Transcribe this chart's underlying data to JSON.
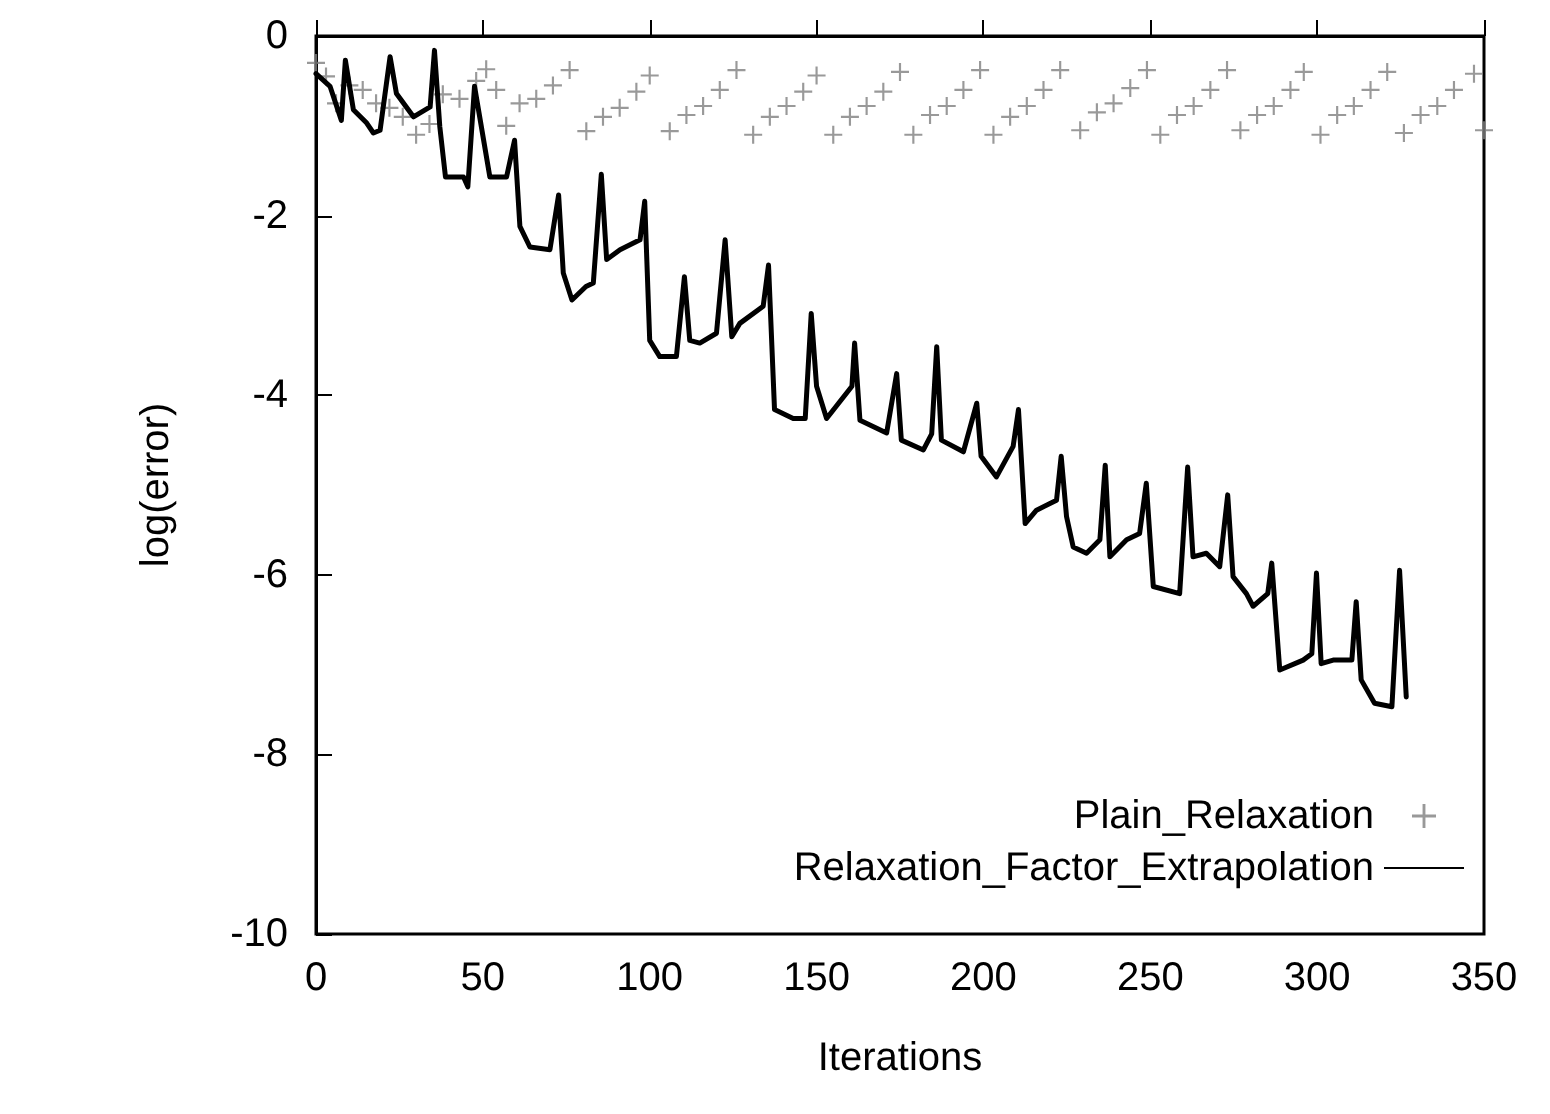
{
  "chart_data": {
    "type": "line",
    "xlabel": "Iterations",
    "ylabel": "log(error)",
    "xlim": [
      0,
      350
    ],
    "xticks": [
      0,
      50,
      100,
      150,
      200,
      250,
      300,
      350
    ],
    "ylim": [
      -10,
      0
    ],
    "yticks": [
      -10,
      -8,
      -6,
      -4,
      -2,
      0
    ],
    "grid": false,
    "legend": "bottom right",
    "series": [
      {
        "name": "Plain_Relaxation",
        "type": "scatter",
        "marker": "cross",
        "color": "#808080",
        "x": [
          0,
          3,
          6,
          10,
          14,
          18,
          22,
          26,
          30,
          34,
          38,
          43,
          48,
          51,
          54,
          57,
          61,
          66,
          71,
          76,
          81,
          86,
          91,
          96,
          100,
          106,
          111,
          116,
          121,
          126,
          131,
          136,
          141,
          146,
          150,
          155,
          160,
          165,
          170,
          175,
          179,
          184,
          189,
          194,
          199,
          203,
          208,
          213,
          218,
          223,
          229,
          234,
          239,
          244,
          249,
          253,
          258,
          263,
          268,
          273,
          277,
          282,
          287,
          292,
          296,
          301,
          306,
          311,
          316,
          321,
          326,
          331,
          336,
          341,
          347,
          350
        ],
        "values": [
          -0.3,
          -0.45,
          -0.75,
          -0.55,
          -0.6,
          -0.75,
          -0.8,
          -0.9,
          -1.1,
          -0.98,
          -0.65,
          -0.7,
          -0.5,
          -0.37,
          -0.6,
          -1.0,
          -0.75,
          -0.7,
          -0.55,
          -0.38,
          -1.06,
          -0.9,
          -0.8,
          -0.62,
          -0.44,
          -1.06,
          -0.88,
          -0.78,
          -0.6,
          -0.38,
          -1.1,
          -0.9,
          -0.78,
          -0.62,
          -0.44,
          -1.1,
          -0.9,
          -0.78,
          -0.62,
          -0.4,
          -1.1,
          -0.88,
          -0.78,
          -0.6,
          -0.38,
          -1.1,
          -0.9,
          -0.78,
          -0.6,
          -0.38,
          -1.05,
          -0.85,
          -0.75,
          -0.58,
          -0.38,
          -1.1,
          -0.88,
          -0.78,
          -0.6,
          -0.38,
          -1.05,
          -0.88,
          -0.78,
          -0.6,
          -0.4,
          -1.1,
          -0.88,
          -0.78,
          -0.6,
          -0.4,
          -1.08,
          -0.88,
          -0.78,
          -0.6,
          -0.42,
          -1.05
        ]
      },
      {
        "name": "Relaxation_Factor_Extrapolation",
        "marker": "none",
        "line_style": "solid",
        "color": "#000000",
        "x": [
          0,
          4.2,
          7.6,
          8.8,
          11.2,
          15.2,
          17.2,
          19.2,
          22.2,
          24.1,
          29.2,
          34.2,
          35.5,
          37.1,
          38.8,
          44.2,
          45.5,
          47.5,
          52.1,
          57.1,
          59.5,
          61.1,
          64.1,
          70.1,
          72.7,
          74.1,
          76.7,
          80.9,
          83.1,
          85.5,
          87.1,
          91.1,
          97.1,
          98.5,
          100,
          103,
          108,
          110.4,
          112,
          115,
          120,
          122.6,
          124.6,
          127,
          134,
          135.6,
          137.4,
          143,
          146.6,
          148.4,
          150,
          153,
          160.6,
          161.4,
          163,
          171,
          174,
          175.4,
          182,
          184.5,
          186,
          187.4,
          194,
          198,
          199.3,
          203.9,
          208.9,
          210.5,
          212.5,
          215.9,
          221.9,
          223.3,
          224.9,
          226.9,
          230.9,
          234.9,
          236.5,
          237.9,
          242.9,
          246.8,
          248.8,
          250.9,
          258.8,
          261.2,
          262.8,
          266.8,
          270.8,
          273.2,
          274.8,
          278.8,
          280.8,
          285.2,
          286.4,
          288.8,
          295.8,
          298.4,
          299.8,
          301.2,
          304.8,
          310.4,
          311.7,
          313.2,
          317.2,
          322.4,
          324.7,
          326.7
        ],
        "values": [
          -0.42,
          -0.56,
          -0.94,
          -0.27,
          -0.82,
          -0.97,
          -1.08,
          -1.05,
          -0.23,
          -0.64,
          -0.9,
          -0.79,
          -0.16,
          -1.01,
          -1.57,
          -1.57,
          -1.68,
          -0.56,
          -1.57,
          -1.57,
          -1.16,
          -2.12,
          -2.35,
          -2.38,
          -1.77,
          -2.64,
          -2.94,
          -2.79,
          -2.75,
          -1.54,
          -2.49,
          -2.38,
          -2.27,
          -1.84,
          -3.39,
          -3.57,
          -3.57,
          -2.68,
          -3.39,
          -3.42,
          -3.31,
          -2.27,
          -3.35,
          -3.2,
          -3.01,
          -2.55,
          -4.16,
          -4.26,
          -4.26,
          -3.09,
          -3.9,
          -4.26,
          -3.9,
          -3.42,
          -4.28,
          -4.42,
          -3.76,
          -4.5,
          -4.61,
          -4.43,
          -3.46,
          -4.5,
          -4.63,
          -4.09,
          -4.68,
          -4.91,
          -4.57,
          -4.16,
          -5.43,
          -5.28,
          -5.17,
          -4.68,
          -5.35,
          -5.69,
          -5.76,
          -5.61,
          -4.78,
          -5.8,
          -5.61,
          -5.54,
          -4.98,
          -6.13,
          -6.21,
          -4.8,
          -5.8,
          -5.76,
          -5.91,
          -5.11,
          -6.02,
          -6.21,
          -6.35,
          -6.21,
          -5.87,
          -7.06,
          -6.95,
          -6.88,
          -5.98,
          -6.99,
          -6.95,
          -6.95,
          -6.3,
          -7.17,
          -7.43,
          -7.47,
          -5.95,
          -7.36
        ]
      }
    ]
  }
}
